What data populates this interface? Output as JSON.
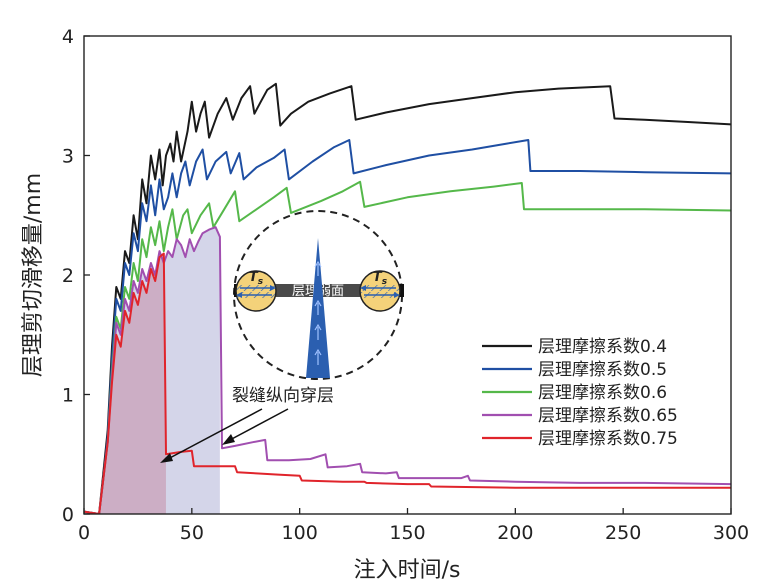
{
  "chart_data": {
    "type": "line",
    "xlabel": "注入时间/s",
    "ylabel": "层理剪切滑移量/mm",
    "xlim": [
      0,
      300
    ],
    "ylim": [
      0,
      4
    ],
    "xticks": [
      "0",
      "50",
      "100",
      "150",
      "200",
      "250",
      "300"
    ],
    "yticks": [
      "0",
      "1",
      "2",
      "3",
      "4"
    ],
    "series": [
      {
        "name": "层理摩擦系数0.4",
        "color": "#1a1a1a",
        "points": [
          [
            0,
            0.02
          ],
          [
            7,
            0.0
          ],
          [
            9,
            0.35
          ],
          [
            11,
            0.7
          ],
          [
            13,
            1.4
          ],
          [
            15,
            1.9
          ],
          [
            17,
            1.8
          ],
          [
            19,
            2.2
          ],
          [
            21,
            2.1
          ],
          [
            23,
            2.5
          ],
          [
            25,
            2.3
          ],
          [
            27,
            2.8
          ],
          [
            29,
            2.6
          ],
          [
            31,
            3.0
          ],
          [
            33,
            2.8
          ],
          [
            35,
            3.05
          ],
          [
            36.5,
            2.75
          ],
          [
            38,
            3.0
          ],
          [
            40,
            3.1
          ],
          [
            41.5,
            2.95
          ],
          [
            43,
            3.2
          ],
          [
            45,
            2.95
          ],
          [
            48,
            3.2
          ],
          [
            50,
            3.45
          ],
          [
            52,
            3.2
          ],
          [
            54,
            3.35
          ],
          [
            56,
            3.45
          ],
          [
            58,
            3.15
          ],
          [
            62,
            3.35
          ],
          [
            66,
            3.48
          ],
          [
            69,
            3.3
          ],
          [
            73,
            3.48
          ],
          [
            77,
            3.58
          ],
          [
            79,
            3.35
          ],
          [
            82,
            3.45
          ],
          [
            85,
            3.55
          ],
          [
            89,
            3.6
          ],
          [
            91,
            3.25
          ],
          [
            96,
            3.35
          ],
          [
            104,
            3.45
          ],
          [
            114,
            3.52
          ],
          [
            124,
            3.58
          ],
          [
            126,
            3.3
          ],
          [
            140,
            3.36
          ],
          [
            160,
            3.43
          ],
          [
            180,
            3.48
          ],
          [
            200,
            3.53
          ],
          [
            220,
            3.56
          ],
          [
            244,
            3.58
          ],
          [
            246,
            3.31
          ],
          [
            260,
            3.3
          ],
          [
            280,
            3.28
          ],
          [
            300,
            3.26
          ]
        ]
      },
      {
        "name": "层理摩擦系数0.5",
        "color": "#1f4fa3",
        "points": [
          [
            0,
            0.02
          ],
          [
            7,
            0.0
          ],
          [
            9,
            0.3
          ],
          [
            11,
            0.65
          ],
          [
            13,
            1.3
          ],
          [
            15,
            1.8
          ],
          [
            17,
            1.7
          ],
          [
            19,
            2.1
          ],
          [
            21,
            2.0
          ],
          [
            23,
            2.35
          ],
          [
            25,
            2.2
          ],
          [
            27,
            2.6
          ],
          [
            29,
            2.45
          ],
          [
            31,
            2.75
          ],
          [
            33,
            2.5
          ],
          [
            35,
            2.8
          ],
          [
            37,
            2.55
          ],
          [
            39,
            2.65
          ],
          [
            41,
            2.85
          ],
          [
            43,
            2.65
          ],
          [
            45,
            2.85
          ],
          [
            47,
            2.95
          ],
          [
            49,
            2.75
          ],
          [
            52,
            2.95
          ],
          [
            55,
            3.05
          ],
          [
            57,
            2.8
          ],
          [
            61,
            2.95
          ],
          [
            66,
            3.03
          ],
          [
            68,
            2.85
          ],
          [
            72,
            3.02
          ],
          [
            74,
            2.8
          ],
          [
            80,
            2.9
          ],
          [
            88,
            2.98
          ],
          [
            93,
            3.05
          ],
          [
            95,
            2.8
          ],
          [
            106,
            2.95
          ],
          [
            116,
            3.07
          ],
          [
            123,
            3.13
          ],
          [
            125,
            2.85
          ],
          [
            140,
            2.92
          ],
          [
            160,
            3.0
          ],
          [
            180,
            3.05
          ],
          [
            196,
            3.1
          ],
          [
            206,
            3.13
          ],
          [
            207,
            2.87
          ],
          [
            230,
            2.87
          ],
          [
            260,
            2.86
          ],
          [
            300,
            2.85
          ]
        ]
      },
      {
        "name": "层理摩擦系数0.6",
        "color": "#55b84a",
        "points": [
          [
            0,
            0.02
          ],
          [
            7,
            0.0
          ],
          [
            9,
            0.3
          ],
          [
            11,
            0.6
          ],
          [
            13,
            1.2
          ],
          [
            15,
            1.65
          ],
          [
            17,
            1.55
          ],
          [
            19,
            1.9
          ],
          [
            21,
            1.8
          ],
          [
            23,
            2.1
          ],
          [
            25,
            1.95
          ],
          [
            27,
            2.3
          ],
          [
            29,
            2.15
          ],
          [
            31,
            2.4
          ],
          [
            33,
            2.25
          ],
          [
            35,
            2.45
          ],
          [
            37,
            2.2
          ],
          [
            39,
            2.4
          ],
          [
            41,
            2.55
          ],
          [
            43,
            2.3
          ],
          [
            46,
            2.5
          ],
          [
            48,
            2.55
          ],
          [
            50,
            2.35
          ],
          [
            54,
            2.5
          ],
          [
            58,
            2.6
          ],
          [
            60,
            2.4
          ],
          [
            65,
            2.55
          ],
          [
            70,
            2.7
          ],
          [
            72,
            2.45
          ],
          [
            80,
            2.55
          ],
          [
            88,
            2.65
          ],
          [
            94,
            2.73
          ],
          [
            96,
            2.52
          ],
          [
            110,
            2.62
          ],
          [
            120,
            2.7
          ],
          [
            128,
            2.78
          ],
          [
            130,
            2.57
          ],
          [
            150,
            2.65
          ],
          [
            170,
            2.7
          ],
          [
            190,
            2.74
          ],
          [
            203,
            2.77
          ],
          [
            204,
            2.55
          ],
          [
            230,
            2.55
          ],
          [
            260,
            2.55
          ],
          [
            300,
            2.54
          ]
        ]
      },
      {
        "name": "层理摩擦系数0.65",
        "color": "#a14fb0",
        "points": [
          [
            0,
            0.02
          ],
          [
            7,
            0.0
          ],
          [
            9,
            0.3
          ],
          [
            11,
            0.6
          ],
          [
            13,
            1.15
          ],
          [
            15,
            1.6
          ],
          [
            17,
            1.5
          ],
          [
            19,
            1.8
          ],
          [
            21,
            1.7
          ],
          [
            23,
            1.95
          ],
          [
            25,
            1.85
          ],
          [
            27,
            2.05
          ],
          [
            29,
            1.95
          ],
          [
            31,
            2.1
          ],
          [
            33,
            2.0
          ],
          [
            35,
            2.2
          ],
          [
            37,
            2.1
          ],
          [
            39,
            2.2
          ],
          [
            41,
            2.15
          ],
          [
            43,
            2.3
          ],
          [
            45,
            2.25
          ],
          [
            47,
            2.15
          ],
          [
            49,
            2.3
          ],
          [
            51,
            2.2
          ],
          [
            53,
            2.28
          ],
          [
            55,
            2.35
          ],
          [
            58,
            2.38
          ],
          [
            61,
            2.4
          ],
          [
            63,
            2.32
          ],
          [
            64,
            0.55
          ],
          [
            70,
            0.57
          ],
          [
            78,
            0.6
          ],
          [
            84,
            0.62
          ],
          [
            85,
            0.45
          ],
          [
            95,
            0.45
          ],
          [
            105,
            0.46
          ],
          [
            112,
            0.5
          ],
          [
            113,
            0.39
          ],
          [
            122,
            0.4
          ],
          [
            128,
            0.42
          ],
          [
            129,
            0.35
          ],
          [
            140,
            0.34
          ],
          [
            145,
            0.35
          ],
          [
            146,
            0.3
          ],
          [
            160,
            0.3
          ],
          [
            175,
            0.3
          ],
          [
            178,
            0.32
          ],
          [
            179,
            0.28
          ],
          [
            200,
            0.27
          ],
          [
            230,
            0.26
          ],
          [
            260,
            0.26
          ],
          [
            300,
            0.25
          ]
        ]
      },
      {
        "name": "层理摩擦系数0.75",
        "color": "#e0242b",
        "points": [
          [
            0,
            0.02
          ],
          [
            7,
            0.0
          ],
          [
            9,
            0.3
          ],
          [
            11,
            0.6
          ],
          [
            13,
            1.1
          ],
          [
            15,
            1.5
          ],
          [
            17,
            1.4
          ],
          [
            19,
            1.7
          ],
          [
            21,
            1.6
          ],
          [
            23,
            1.85
          ],
          [
            25,
            1.75
          ],
          [
            27,
            1.95
          ],
          [
            29,
            1.85
          ],
          [
            31,
            2.05
          ],
          [
            33,
            1.95
          ],
          [
            35,
            2.15
          ],
          [
            37,
            2.18
          ],
          [
            38,
            0.5
          ],
          [
            45,
            0.52
          ],
          [
            50,
            0.53
          ],
          [
            51,
            0.4
          ],
          [
            60,
            0.4
          ],
          [
            70,
            0.4
          ],
          [
            71,
            0.35
          ],
          [
            80,
            0.34
          ],
          [
            90,
            0.33
          ],
          [
            100,
            0.32
          ],
          [
            101,
            0.28
          ],
          [
            120,
            0.27
          ],
          [
            130,
            0.27
          ],
          [
            131,
            0.26
          ],
          [
            150,
            0.25
          ],
          [
            160,
            0.25
          ],
          [
            161,
            0.23
          ],
          [
            200,
            0.22
          ],
          [
            240,
            0.22
          ],
          [
            260,
            0.22
          ],
          [
            300,
            0.22
          ]
        ]
      }
    ],
    "legend": {
      "position": "middle-right",
      "entries": [
        "层理摩擦系数0.4",
        "层理摩擦系数0.5",
        "层理摩擦系数0.6",
        "层理摩擦系数0.65",
        "层理摩擦系数0.75"
      ]
    },
    "shaded_regions": [
      {
        "series": "层理摩擦系数0.75",
        "x_end": 38,
        "color": "#c9a0b8"
      },
      {
        "series": "层理摩擦系数0.65",
        "x_end": 63,
        "color": "#c5c7e2"
      }
    ],
    "annotation": {
      "text": "裂缝纵向穿层"
    },
    "inset": {
      "label": "层理弱面",
      "stress_symbol": "T",
      "stress_subscript": "s"
    }
  }
}
